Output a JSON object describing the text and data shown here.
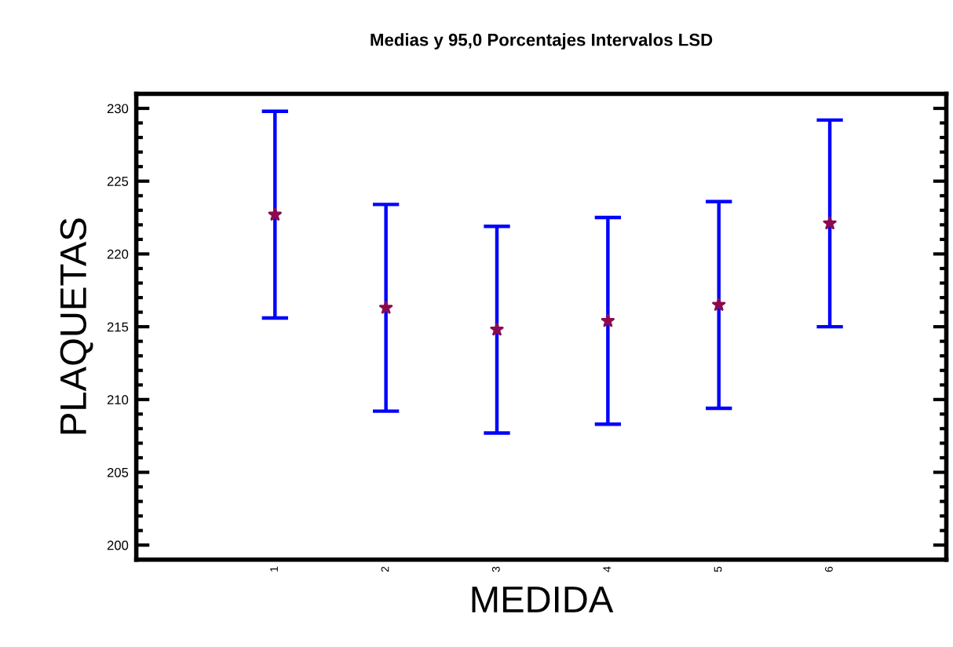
{
  "chart_data": {
    "type": "scatter",
    "title": "Medias y 95,0 Porcentajes Intervalos LSD",
    "xlabel": "MEDIDA",
    "ylabel": "PLAQUETAS",
    "categories": [
      "1",
      "2",
      "3",
      "4",
      "5",
      "6"
    ],
    "series": [
      {
        "color": "#8b0a50",
        "values": [
          222.7,
          216.3,
          214.8,
          215.4,
          216.5,
          222.1
        ],
        "errors": [
          7.1,
          7.1,
          7.1,
          7.1,
          7.1,
          7.1
        ]
      }
    ],
    "marker": "star",
    "ylim": [
      199,
      231
    ],
    "yticks": [
      200,
      205,
      210,
      215,
      220,
      225,
      230
    ],
    "grid": false,
    "legend": false
  }
}
